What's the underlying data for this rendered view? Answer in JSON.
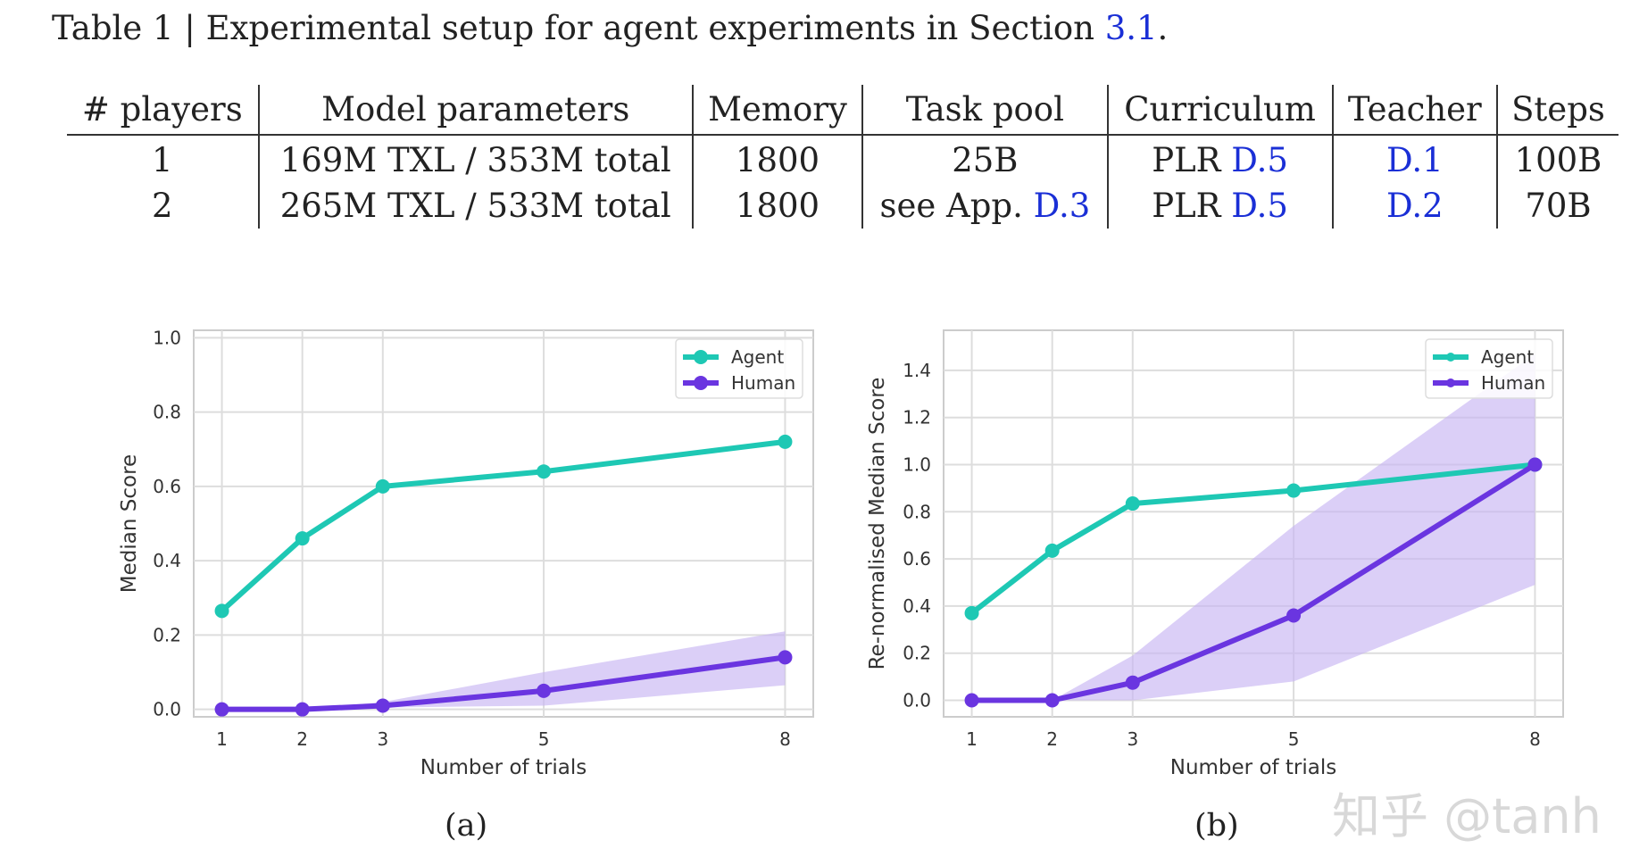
{
  "caption": {
    "prefix": "Table 1 | Experimental setup for agent experiments in Section ",
    "link": "3.1",
    "suffix": "."
  },
  "table": {
    "headers": [
      "# players",
      "Model parameters",
      "Memory",
      "Task pool",
      "Curriculum",
      "Teacher",
      "Steps"
    ],
    "rows": [
      [
        {
          "t": "1"
        },
        {
          "t": "169M TXL / 353M total"
        },
        {
          "t": "1800"
        },
        {
          "t": "25B"
        },
        {
          "t": "PLR ",
          "l": "D.5"
        },
        {
          "t": "",
          "l": "D.1"
        },
        {
          "t": "100B"
        }
      ],
      [
        {
          "t": "2"
        },
        {
          "t": "265M TXL / 533M total"
        },
        {
          "t": "1800"
        },
        {
          "t": "see App. ",
          "l": "D.3"
        },
        {
          "t": "PLR ",
          "l": "D.5"
        },
        {
          "t": "",
          "l": "D.2"
        },
        {
          "t": "70B"
        }
      ]
    ]
  },
  "colors": {
    "agent": "#1ec8b4",
    "human": "#6a35e0",
    "band": "#c7b5f3",
    "grid": "#dddddd",
    "link": "#1a2fd6"
  },
  "chart_data": [
    {
      "type": "line",
      "sublabel": "(a)",
      "xlabel": "Number of trials",
      "ylabel": "Median Score",
      "x": [
        1,
        2,
        3,
        5,
        8
      ],
      "xticks": [
        "1",
        "2",
        "3",
        "5",
        "8"
      ],
      "yticks": [
        "0.0",
        "0.2",
        "0.4",
        "0.6",
        "0.8",
        "1.0"
      ],
      "ylim": [
        -0.02,
        1.02
      ],
      "xlim": [
        0.65,
        8.35
      ],
      "grid": true,
      "legend": "top-right",
      "series": [
        {
          "name": "Agent",
          "values": [
            0.265,
            0.46,
            0.6,
            0.64,
            0.72
          ]
        },
        {
          "name": "Human",
          "values": [
            0.0,
            0.0,
            0.01,
            0.05,
            0.14
          ],
          "band_low": [
            0,
            0,
            0.005,
            0.01,
            0.065
          ],
          "band_high": [
            0,
            0,
            0.02,
            0.1,
            0.21
          ]
        }
      ]
    },
    {
      "type": "line",
      "sublabel": "(b)",
      "xlabel": "Number of trials",
      "ylabel": "Re-normalised Median Score",
      "x": [
        1,
        2,
        3,
        5,
        8
      ],
      "xticks": [
        "1",
        "2",
        "3",
        "5",
        "8"
      ],
      "yticks": [
        "0.0",
        "0.2",
        "0.4",
        "0.6",
        "0.8",
        "1.0",
        "1.2",
        "1.4"
      ],
      "ylim": [
        -0.07,
        1.57
      ],
      "xlim": [
        0.65,
        8.35
      ],
      "grid": true,
      "legend": "top-right",
      "series": [
        {
          "name": "Agent",
          "values": [
            0.37,
            0.635,
            0.835,
            0.89,
            1.0
          ]
        },
        {
          "name": "Human",
          "values": [
            0.0,
            0.0,
            0.075,
            0.36,
            1.0
          ],
          "band_low": [
            0,
            0,
            0,
            0.08,
            0.49
          ],
          "band_high": [
            0,
            0,
            0.19,
            0.74,
            1.47
          ]
        }
      ]
    }
  ],
  "watermark": "知乎 @tanh"
}
